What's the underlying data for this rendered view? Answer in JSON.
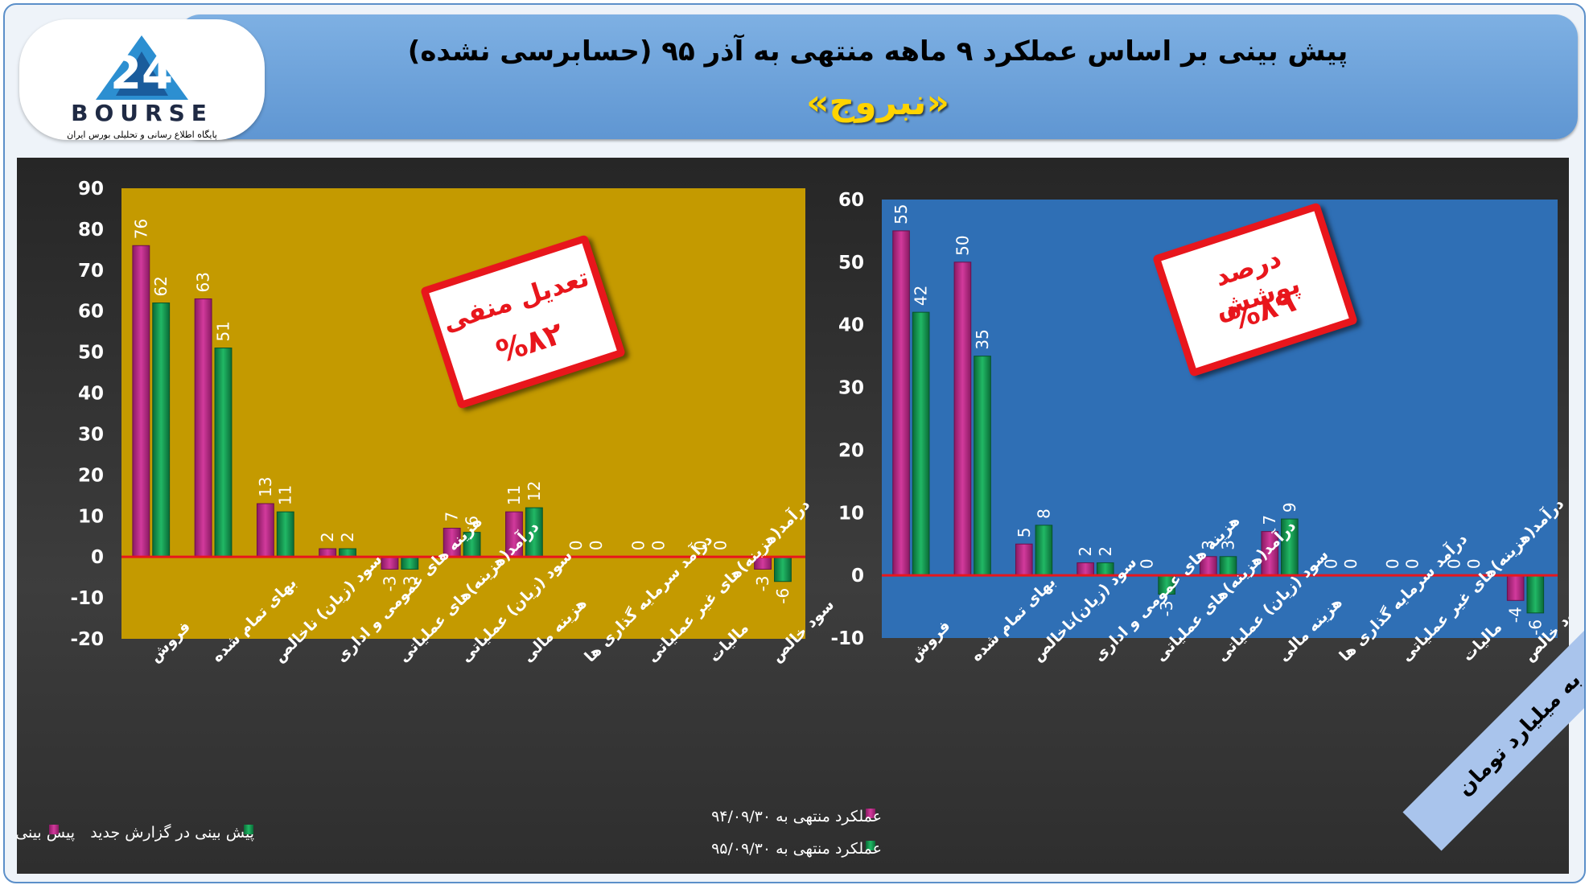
{
  "header": {
    "title": "پیش بینی بر اساس عملکرد ۹ ماهه منتهی به آذر ۹۵ (حسابرسی نشده)",
    "symbol": "«نبروج»"
  },
  "logo": {
    "number": "24",
    "brand": "BOURSE",
    "subtitle": "پایگاه اطلاع رسانی و تحلیلی بورس ایران"
  },
  "colors": {
    "magenta": "#b0237f",
    "green": "#0f8f4a",
    "gold": "#c49a00",
    "blue": "#2f6fb5",
    "zero_line": "#e8161c",
    "note_red": "#e8161c"
  },
  "notes": {
    "left": {
      "line1": "تعدیل منفی",
      "line2": "%۸۲"
    },
    "right": {
      "line1": "درصد پوشش",
      "line2": "%۸۹"
    }
  },
  "banner": "ارقام به میلیارد تومان",
  "chart_data": [
    {
      "type": "bar",
      "panel": "left",
      "background": "#c49a00",
      "categories": [
        "فروش",
        "بهای تمام شده",
        "سود (زیان) ناخالص",
        "هزینه های عمومی و اداری",
        "درآمد(هزینه)های عملیاتی",
        "سود (زیان) عملیاتی",
        "هزینه مالی",
        "درآمد سرمایه گذاری ها",
        "درآمد(هزینه)های غیر عملیاتی",
        "مالیات",
        "سود خالص"
      ],
      "series": [
        {
          "name": "پیش بینی در گزارش قبلی",
          "color": "#b0237f",
          "values": [
            76,
            63,
            13,
            2,
            -3,
            7,
            11,
            0,
            0,
            0,
            -3
          ]
        },
        {
          "name": "پیش بینی در گزارش جدید",
          "color": "#0f8f4a",
          "values": [
            62,
            51,
            11,
            2,
            -3,
            6,
            12,
            0,
            0,
            0,
            -6
          ]
        }
      ],
      "ylim": [
        -20,
        90
      ],
      "yticks": [
        90,
        80,
        70,
        60,
        50,
        40,
        30,
        20,
        10,
        0,
        -10,
        -20
      ],
      "legend_position": "bottom"
    },
    {
      "type": "bar",
      "panel": "right",
      "background": "#2f6fb5",
      "categories": [
        "فروش",
        "بهای تمام شده",
        "سود (زیان)ناخالص",
        "هزینه های عمومی و اداری",
        "درآمد(هزینه)های عملیاتی",
        "سود (زیان) عملیاتی",
        "هزینه مالی",
        "درآمد سرمایه گذاری ها",
        "درآمد(هزینه)های غیر عملیاتی",
        "مالیات",
        "سود خالص"
      ],
      "series": [
        {
          "name": "عملکرد منتهی به ۹۴/۰۹/۳۰",
          "color": "#b0237f",
          "values": [
            55,
            50,
            5,
            2,
            0,
            3,
            7,
            0,
            0,
            0,
            -4
          ]
        },
        {
          "name": "عملکرد منتهی به ۹۵/۰۹/۳۰",
          "color": "#0f8f4a",
          "values": [
            42,
            35,
            8,
            2,
            -3,
            3,
            9,
            0,
            0,
            0,
            -6
          ]
        }
      ],
      "ylim": [
        -10,
        60
      ],
      "yticks": [
        60,
        50,
        40,
        30,
        20,
        10,
        0,
        -10
      ],
      "legend_position": "bottom-left"
    }
  ]
}
